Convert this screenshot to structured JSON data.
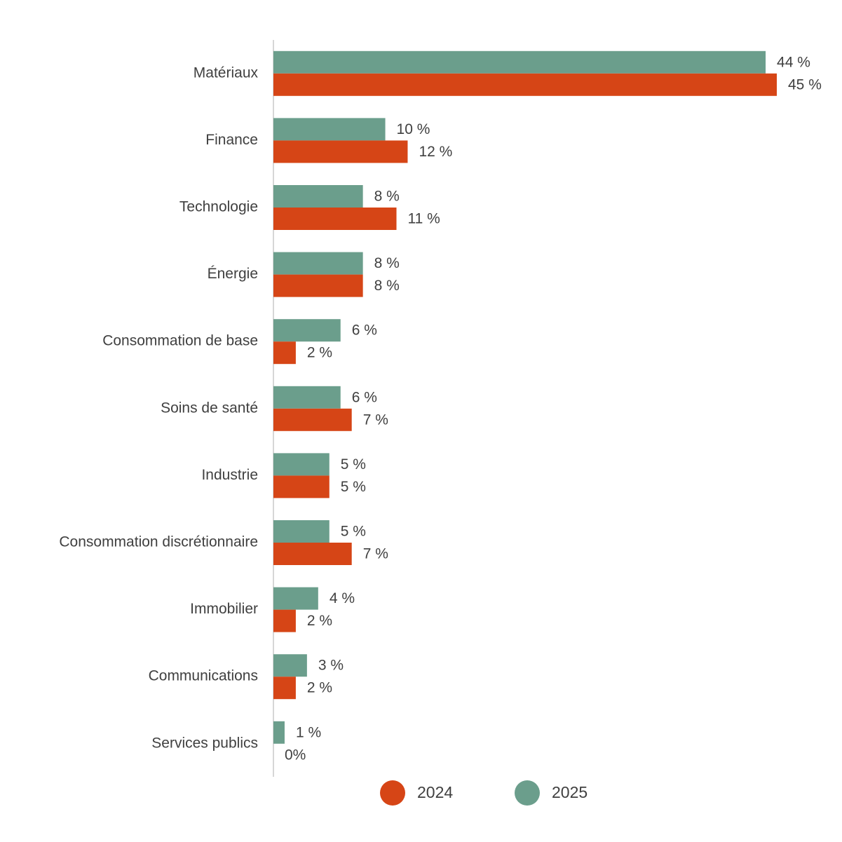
{
  "chart_data": {
    "type": "bar",
    "orientation": "horizontal",
    "categories": [
      "Matériaux",
      "Finance",
      "Technologie",
      "Énergie",
      "Consommation de base",
      "Soins de santé",
      "Industrie",
      "Consommation discrétionnaire",
      "Immobilier",
      "Communications",
      "Services publics"
    ],
    "series": [
      {
        "name": "2024",
        "color": "#d64516",
        "values": [
          45,
          12,
          11,
          8,
          2,
          7,
          5,
          7,
          2,
          2,
          0
        ],
        "value_labels": [
          "45 %",
          "12 %",
          "11 %",
          "8 %",
          "2 %",
          "7 %",
          "5 %",
          "7 %",
          "2 %",
          "2 %",
          "0%"
        ]
      },
      {
        "name": "2025",
        "color": "#6b9e8c",
        "values": [
          44,
          10,
          8,
          8,
          6,
          6,
          5,
          5,
          4,
          3,
          1
        ],
        "value_labels": [
          "44 %",
          "10 %",
          "8 %",
          "8 %",
          "6 %",
          "6 %",
          "5 %",
          "5 %",
          "4 %",
          "3 %",
          "1 %"
        ]
      }
    ]
  }
}
